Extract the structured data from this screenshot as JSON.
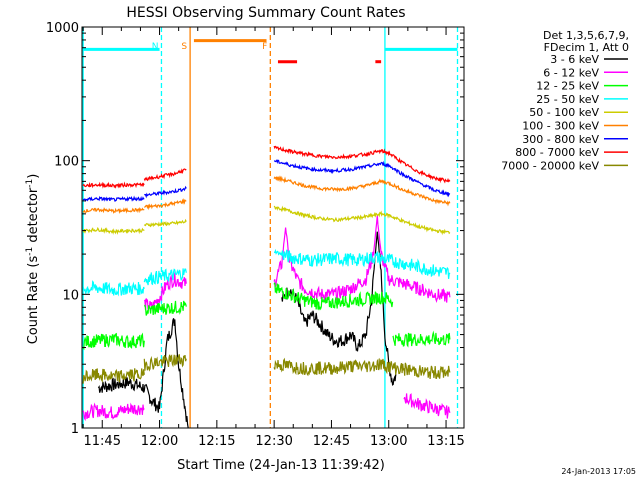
{
  "chart_data": {
    "type": "line",
    "title": "HESSI Observing Summary Count Rates",
    "xlabel": "Start Time (24-Jan-13 11:39:42)",
    "ylabel_main": "Count Rate (s",
    "ylabel_sup1": "-1",
    "ylabel_mid": " detector",
    "ylabel_sup2": "-1",
    "ylabel_end": ")",
    "y_scale": "log",
    "xlim_minutes": [
      699.7,
      799.7
    ],
    "ylim": [
      1,
      1000
    ],
    "x_ticks": [
      {
        "minutes": 705,
        "label": "11:45"
      },
      {
        "minutes": 720,
        "label": "12:00"
      },
      {
        "minutes": 735,
        "label": "12:15"
      },
      {
        "minutes": 750,
        "label": "12:30"
      },
      {
        "minutes": 765,
        "label": "12:45"
      },
      {
        "minutes": 780,
        "label": "13:00"
      },
      {
        "minutes": 795,
        "label": "13:15"
      }
    ],
    "y_ticks": [
      {
        "value": 1,
        "label": "1"
      },
      {
        "value": 10,
        "label": "10"
      },
      {
        "value": 100,
        "label": "100"
      },
      {
        "value": 1000,
        "label": "1000"
      }
    ],
    "legend": {
      "placement": "right",
      "header": [
        "Det 1,3,5,6,7,9,",
        "FDecim 1, Att 0"
      ],
      "entries": [
        {
          "label": "3 - 6 keV",
          "color": "#000000"
        },
        {
          "label": "6 - 12 keV",
          "color": "#ff00ff"
        },
        {
          "label": "12 - 25 keV",
          "color": "#00ff00"
        },
        {
          "label": "25 - 50 keV",
          "color": "#00ffff"
        },
        {
          "label": "50 - 100 keV",
          "color": "#cccc00"
        },
        {
          "label": "100 - 300 keV",
          "color": "#ff8000"
        },
        {
          "label": "300 - 800 keV",
          "color": "#0000ff"
        },
        {
          "label": "800 - 7000 keV",
          "color": "#ff0000"
        },
        {
          "label": "7000 - 20000 keV",
          "color": "#888800"
        }
      ]
    },
    "series": [
      {
        "label": "3 - 6 keV",
        "color": "#000000",
        "segments": [
          [
            [
              704,
              2.0
            ],
            [
              708,
              2.1
            ],
            [
              712,
              2.2
            ],
            [
              716,
              2.0
            ],
            [
              718,
              1.6
            ],
            [
              720,
              1.4
            ],
            [
              722,
              4.5
            ],
            [
              724,
              6.5
            ],
            [
              725,
              3.0
            ],
            [
              727.5,
              1.0
            ]
          ],
          [
            [
              752,
              9
            ],
            [
              754,
              11
            ],
            [
              756,
              9
            ],
            [
              758,
              6
            ],
            [
              760,
              7
            ],
            [
              762,
              6
            ],
            [
              764,
              5
            ],
            [
              766,
              4.5
            ],
            [
              768,
              4.5
            ],
            [
              770,
              5
            ],
            [
              772,
              4
            ],
            [
              774,
              5
            ],
            [
              775.5,
              9
            ],
            [
              776.5,
              20
            ],
            [
              777,
              30
            ],
            [
              778,
              14
            ],
            [
              779,
              5
            ],
            [
              780,
              3
            ],
            [
              781,
              2.2
            ],
            [
              782,
              2.5
            ]
          ]
        ]
      },
      {
        "label": "6 - 12 keV",
        "color": "#ff00ff",
        "segments": [
          [
            [
              700,
              1.3
            ],
            [
              704,
              1.35
            ],
            [
              708,
              1.3
            ],
            [
              712,
              1.4
            ],
            [
              716,
              1.4
            ]
          ],
          [
            [
              716,
              8.5
            ],
            [
              718,
              8.0
            ],
            [
              720,
              9.5
            ],
            [
              722,
              12
            ],
            [
              724,
              13
            ],
            [
              725,
              12.5
            ],
            [
              727,
              12
            ]
          ],
          [
            [
              750,
              12
            ],
            [
              752,
              17
            ],
            [
              753,
              32
            ],
            [
              754,
              18
            ],
            [
              756,
              13
            ],
            [
              758,
              11
            ],
            [
              762,
              10
            ],
            [
              766,
              10
            ],
            [
              770,
              11
            ],
            [
              774,
              13
            ],
            [
              776,
              20
            ],
            [
              777,
              38
            ],
            [
              778,
              20
            ],
            [
              780,
              13
            ],
            [
              784,
              12
            ],
            [
              788,
              11
            ],
            [
              792,
              10
            ],
            [
              796,
              9.5
            ]
          ],
          [
            [
              784,
              1.7
            ],
            [
              788,
              1.5
            ],
            [
              792,
              1.4
            ],
            [
              796,
              1.3
            ]
          ]
        ]
      },
      {
        "label": "12 - 25 keV",
        "color": "#00ff00",
        "segments": [
          [
            [
              700,
              4.4
            ],
            [
              704,
              4.5
            ],
            [
              708,
              4.6
            ],
            [
              712,
              4.4
            ],
            [
              716,
              4.5
            ]
          ],
          [
            [
              716,
              7.5
            ],
            [
              720,
              7.8
            ],
            [
              724,
              8.0
            ],
            [
              727,
              8.1
            ]
          ],
          [
            [
              750,
              11
            ],
            [
              754,
              10
            ],
            [
              758,
              9
            ],
            [
              762,
              8.5
            ],
            [
              766,
              8.7
            ],
            [
              770,
              9
            ],
            [
              774,
              9.2
            ],
            [
              778,
              9.5
            ],
            [
              780,
              9.3
            ],
            [
              781,
              8.8
            ]
          ],
          [
            [
              781,
              4.6
            ],
            [
              786,
              4.6
            ],
            [
              790,
              4.6
            ],
            [
              796,
              4.6
            ]
          ]
        ]
      },
      {
        "label": "25 - 50 keV",
        "color": "#00ffff",
        "segments": [
          [
            [
              700,
              11
            ],
            [
              704,
              11.2
            ],
            [
              708,
              10.8
            ],
            [
              712,
              11.1
            ],
            [
              716,
              11
            ]
          ],
          [
            [
              716,
              13
            ],
            [
              720,
              13.5
            ],
            [
              724,
              14
            ],
            [
              727,
              14.5
            ]
          ],
          [
            [
              750,
              21
            ],
            [
              754,
              19
            ],
            [
              760,
              18
            ],
            [
              766,
              18.5
            ],
            [
              772,
              18
            ],
            [
              776,
              19
            ],
            [
              780,
              18
            ],
            [
              784,
              17
            ],
            [
              788,
              16
            ],
            [
              792,
              15
            ],
            [
              796,
              14.5
            ]
          ]
        ]
      },
      {
        "label": "50 - 100 keV",
        "color": "#cccc00",
        "segments": [
          [
            [
              700,
              30
            ],
            [
              704,
              30.5
            ],
            [
              708,
              29.5
            ],
            [
              712,
              30
            ],
            [
              716,
              30
            ]
          ],
          [
            [
              716,
              33
            ],
            [
              720,
              33.5
            ],
            [
              724,
              34
            ],
            [
              727,
              35
            ]
          ],
          [
            [
              750,
              45
            ],
            [
              754,
              42
            ],
            [
              758,
              39
            ],
            [
              762,
              37
            ],
            [
              766,
              36
            ],
            [
              770,
              37
            ],
            [
              774,
              38
            ],
            [
              778,
              40
            ],
            [
              780,
              39
            ],
            [
              784,
              35
            ],
            [
              788,
              32
            ],
            [
              792,
              30
            ],
            [
              796,
              29
            ]
          ]
        ]
      },
      {
        "label": "100 - 300 keV",
        "color": "#ff8000",
        "segments": [
          [
            [
              700,
              42
            ],
            [
              704,
              43
            ],
            [
              708,
              42
            ],
            [
              712,
              42.5
            ],
            [
              716,
              43
            ]
          ],
          [
            [
              716,
              45
            ],
            [
              720,
              46
            ],
            [
              724,
              48
            ],
            [
              727,
              50
            ]
          ],
          [
            [
              750,
              75
            ],
            [
              754,
              70
            ],
            [
              758,
              65
            ],
            [
              762,
              62
            ],
            [
              766,
              61
            ],
            [
              770,
              62
            ],
            [
              774,
              65
            ],
            [
              778,
              70
            ],
            [
              780,
              68
            ],
            [
              784,
              60
            ],
            [
              788,
              55
            ],
            [
              792,
              50
            ],
            [
              796,
              48
            ]
          ]
        ]
      },
      {
        "label": "300 - 800 keV",
        "color": "#0000ff",
        "segments": [
          [
            [
              700,
              51
            ],
            [
              704,
              52
            ],
            [
              708,
              51
            ],
            [
              712,
              52
            ],
            [
              716,
              52
            ]
          ],
          [
            [
              716,
              55
            ],
            [
              720,
              57
            ],
            [
              724,
              59
            ],
            [
              727,
              62
            ]
          ],
          [
            [
              750,
              100
            ],
            [
              754,
              93
            ],
            [
              758,
              88
            ],
            [
              762,
              85
            ],
            [
              766,
              84
            ],
            [
              770,
              86
            ],
            [
              774,
              90
            ],
            [
              778,
              95
            ],
            [
              780,
              92
            ],
            [
              784,
              78
            ],
            [
              788,
              68
            ],
            [
              792,
              60
            ],
            [
              796,
              56
            ]
          ]
        ]
      },
      {
        "label": "800 - 7000 keV",
        "color": "#ff0000",
        "segments": [
          [
            [
              700,
              65
            ],
            [
              704,
              66
            ],
            [
              708,
              65
            ],
            [
              712,
              66
            ],
            [
              716,
              66
            ]
          ],
          [
            [
              716,
              72
            ],
            [
              720,
              76
            ],
            [
              724,
              80
            ],
            [
              727,
              86
            ]
          ],
          [
            [
              750,
              125
            ],
            [
              754,
              118
            ],
            [
              758,
              112
            ],
            [
              762,
              108
            ],
            [
              766,
              106
            ],
            [
              770,
              108
            ],
            [
              774,
              112
            ],
            [
              778,
              118
            ],
            [
              780,
              114
            ],
            [
              784,
              95
            ],
            [
              788,
              82
            ],
            [
              792,
              74
            ],
            [
              796,
              70
            ]
          ]
        ]
      },
      {
        "label": "7000 - 20000 keV",
        "color": "#888800",
        "segments": [
          [
            [
              700,
              2.4
            ],
            [
              704,
              2.5
            ],
            [
              708,
              2.4
            ],
            [
              712,
              2.5
            ],
            [
              716,
              2.5
            ]
          ],
          [
            [
              716,
              3.0
            ],
            [
              720,
              3.1
            ],
            [
              724,
              3.2
            ],
            [
              727,
              3.3
            ]
          ],
          [
            [
              750,
              3.0
            ],
            [
              754,
              2.9
            ],
            [
              758,
              2.8
            ],
            [
              762,
              2.8
            ],
            [
              766,
              2.8
            ],
            [
              770,
              2.9
            ],
            [
              774,
              2.9
            ],
            [
              778,
              3.0
            ],
            [
              782,
              2.8
            ],
            [
              786,
              2.7
            ],
            [
              790,
              2.6
            ],
            [
              796,
              2.6
            ]
          ]
        ]
      }
    ],
    "annotations": [
      {
        "type": "bar",
        "label": "",
        "color": "#00ffff",
        "x_range": [
          700,
          720
        ],
        "level": 680,
        "dashed": false
      },
      {
        "type": "vline",
        "label": "",
        "color": "#00ffff",
        "x": 700,
        "dashed": false
      },
      {
        "type": "vline",
        "label": "N",
        "color": "#00ffff",
        "x": 720.5,
        "dashed": true
      },
      {
        "type": "vline",
        "label": "S",
        "color": "#ff8000",
        "x": 728,
        "dashed": false
      },
      {
        "type": "bar",
        "label": "",
        "color": "#ff8000",
        "x_range": [
          729,
          748
        ],
        "level": 790,
        "dashed": false
      },
      {
        "type": "vline",
        "label": "F",
        "color": "#ff8000",
        "x": 749,
        "dashed": true
      },
      {
        "type": "bar",
        "label": "",
        "color": "#ff0000",
        "x_range": [
          751,
          756
        ],
        "level": 550,
        "dashed": false
      },
      {
        "type": "bar",
        "label": "",
        "color": "#ff0000",
        "x_range": [
          776.5,
          778
        ],
        "level": 550,
        "dashed": false
      },
      {
        "type": "vline",
        "label": "",
        "color": "#00ffff",
        "x": 779,
        "dashed": false
      },
      {
        "type": "bar",
        "label": "",
        "color": "#00ffff",
        "x_range": [
          779,
          798
        ],
        "level": 680,
        "dashed": false
      },
      {
        "type": "vline",
        "label": "",
        "color": "#00ffff",
        "x": 798,
        "dashed": true
      }
    ],
    "grid": false
  },
  "footer": {
    "timestamp": "24-Jan-2013 17:05"
  }
}
